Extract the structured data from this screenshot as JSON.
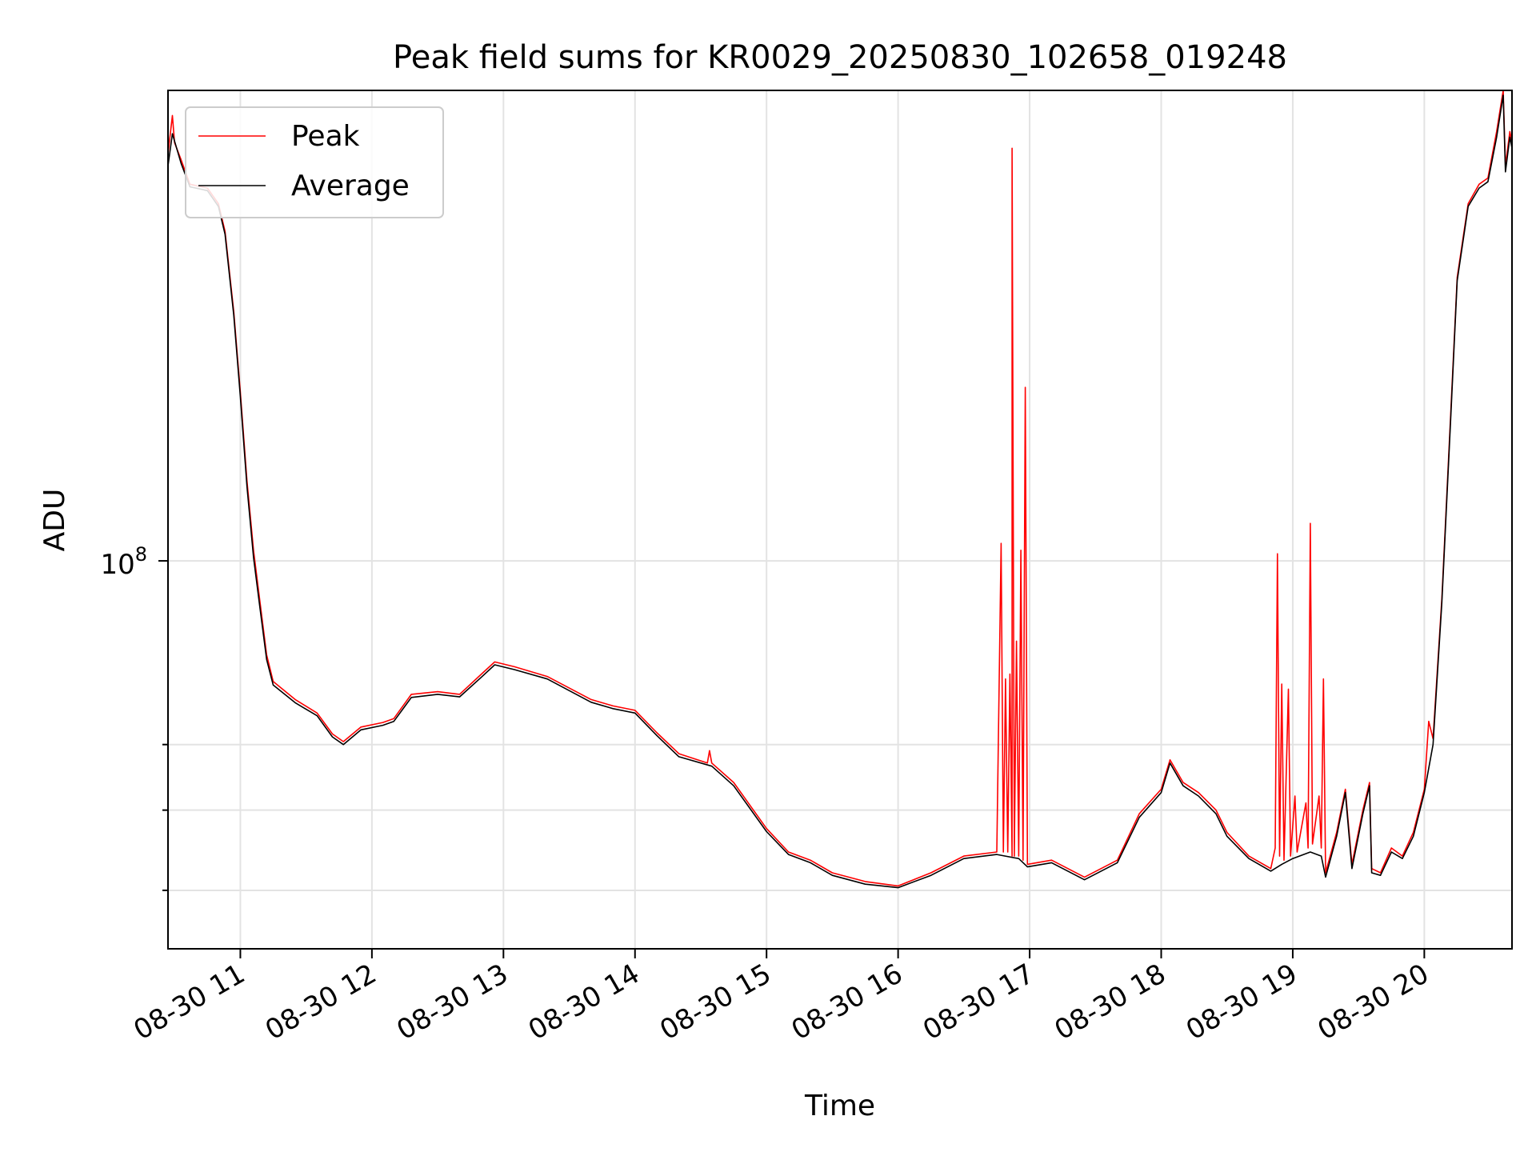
{
  "chart_data": {
    "type": "line",
    "title": "Peak field sums for KR0029_20250830_102658_019248",
    "xlabel": "Time",
    "ylabel": "ADU",
    "y_scale": "log",
    "grid": true,
    "legend_position": "upper-left",
    "x_range": [
      "2025-08-30T10:27",
      "2025-08-30T20:40"
    ],
    "ylim": [
      34000000,
      370000000
    ],
    "x_ticks": [
      "08-30 11",
      "08-30 12",
      "08-30 13",
      "08-30 14",
      "08-30 15",
      "08-30 16",
      "08-30 17",
      "08-30 18",
      "08-30 19",
      "08-30 20"
    ],
    "y_ticks": [
      {
        "value": 100000000,
        "label_base": "10",
        "label_exp": "8"
      },
      {
        "value": 40000000,
        "label_base": "",
        "label_exp": ""
      },
      {
        "value": 50000000,
        "label_base": "",
        "label_exp": ""
      },
      {
        "value": 60000000,
        "label_base": "",
        "label_exp": ""
      }
    ],
    "series": [
      {
        "name": "Peak",
        "color": "#ff0000",
        "points": [
          [
            "2025-08-30T10:27",
            310000000
          ],
          [
            "2025-08-30T10:29",
            345000000
          ],
          [
            "2025-08-30T10:30",
            320000000
          ],
          [
            "2025-08-30T10:33",
            305000000
          ],
          [
            "2025-08-30T10:37",
            285000000
          ],
          [
            "2025-08-30T10:45",
            282000000
          ],
          [
            "2025-08-30T10:50",
            270000000
          ],
          [
            "2025-08-30T10:53",
            250000000
          ],
          [
            "2025-08-30T10:57",
            200000000
          ],
          [
            "2025-08-30T11:00",
            160000000
          ],
          [
            "2025-08-30T11:03",
            125000000
          ],
          [
            "2025-08-30T11:06",
            103000000
          ],
          [
            "2025-08-30T11:09",
            89000000
          ],
          [
            "2025-08-30T11:12",
            77000000
          ],
          [
            "2025-08-30T11:15",
            71500000
          ],
          [
            "2025-08-30T11:25",
            68000000
          ],
          [
            "2025-08-30T11:35",
            65500000
          ],
          [
            "2025-08-30T11:42",
            61800000
          ],
          [
            "2025-08-30T11:47",
            60500000
          ],
          [
            "2025-08-30T11:55",
            63000000
          ],
          [
            "2025-08-30T12:05",
            63800000
          ],
          [
            "2025-08-30T12:10",
            64500000
          ],
          [
            "2025-08-30T12:18",
            69000000
          ],
          [
            "2025-08-30T12:30",
            69500000
          ],
          [
            "2025-08-30T12:40",
            69000000
          ],
          [
            "2025-08-30T12:50",
            73000000
          ],
          [
            "2025-08-30T12:56",
            75500000
          ],
          [
            "2025-08-30T13:05",
            74500000
          ],
          [
            "2025-08-30T13:20",
            72500000
          ],
          [
            "2025-08-30T13:40",
            68000000
          ],
          [
            "2025-08-30T13:50",
            66800000
          ],
          [
            "2025-08-30T14:00",
            66000000
          ],
          [
            "2025-08-30T14:10",
            62000000
          ],
          [
            "2025-08-30T14:20",
            58500000
          ],
          [
            "2025-08-30T14:33",
            57000000
          ],
          [
            "2025-08-30T14:34",
            59000000
          ],
          [
            "2025-08-30T14:35",
            57000000
          ],
          [
            "2025-08-30T14:45",
            54000000
          ],
          [
            "2025-08-30T15:00",
            47500000
          ],
          [
            "2025-08-30T15:10",
            44500000
          ],
          [
            "2025-08-30T15:20",
            43500000
          ],
          [
            "2025-08-30T15:30",
            42000000
          ],
          [
            "2025-08-30T15:45",
            41000000
          ],
          [
            "2025-08-30T16:00",
            40500000
          ],
          [
            "2025-08-30T16:15",
            42000000
          ],
          [
            "2025-08-30T16:30",
            44000000
          ],
          [
            "2025-08-30T16:45",
            44500000
          ],
          [
            "2025-08-30T16:47",
            105000000
          ],
          [
            "2025-08-30T16:48",
            44500000
          ],
          [
            "2025-08-30T16:49",
            72000000
          ],
          [
            "2025-08-30T16:50",
            44500000
          ],
          [
            "2025-08-30T16:51",
            73000000
          ],
          [
            "2025-08-30T16:52",
            44000000
          ],
          [
            "2025-08-30T16:52",
            315000000
          ],
          [
            "2025-08-30T16:53",
            44000000
          ],
          [
            "2025-08-30T16:54",
            80000000
          ],
          [
            "2025-08-30T16:55",
            44000000
          ],
          [
            "2025-08-30T16:56",
            103000000
          ],
          [
            "2025-08-30T16:57",
            43500000
          ],
          [
            "2025-08-30T16:58",
            162000000
          ],
          [
            "2025-08-30T16:59",
            43000000
          ],
          [
            "2025-08-30T17:10",
            43500000
          ],
          [
            "2025-08-30T17:25",
            41500000
          ],
          [
            "2025-08-30T17:40",
            43500000
          ],
          [
            "2025-08-30T17:50",
            49500000
          ],
          [
            "2025-08-30T18:00",
            53000000
          ],
          [
            "2025-08-30T18:04",
            57500000
          ],
          [
            "2025-08-30T18:10",
            54000000
          ],
          [
            "2025-08-30T18:17",
            52500000
          ],
          [
            "2025-08-30T18:25",
            50000000
          ],
          [
            "2025-08-30T18:30",
            47000000
          ],
          [
            "2025-08-30T18:40",
            44000000
          ],
          [
            "2025-08-30T18:50",
            42500000
          ],
          [
            "2025-08-30T18:52",
            45000000
          ],
          [
            "2025-08-30T18:53",
            102000000
          ],
          [
            "2025-08-30T18:54",
            44000000
          ],
          [
            "2025-08-30T18:55",
            71000000
          ],
          [
            "2025-08-30T18:56",
            43500000
          ],
          [
            "2025-08-30T18:58",
            70000000
          ],
          [
            "2025-08-30T18:59",
            44000000
          ],
          [
            "2025-08-30T19:01",
            52000000
          ],
          [
            "2025-08-30T19:02",
            44500000
          ],
          [
            "2025-08-30T19:06",
            51000000
          ],
          [
            "2025-08-30T19:07",
            45000000
          ],
          [
            "2025-08-30T19:08",
            111000000
          ],
          [
            "2025-08-30T19:09",
            45500000
          ],
          [
            "2025-08-30T19:12",
            52000000
          ],
          [
            "2025-08-30T19:13",
            45000000
          ],
          [
            "2025-08-30T19:14",
            72000000
          ],
          [
            "2025-08-30T19:15",
            42000000
          ],
          [
            "2025-08-30T19:20",
            47000000
          ],
          [
            "2025-08-30T19:24",
            53000000
          ],
          [
            "2025-08-30T19:27",
            43000000
          ],
          [
            "2025-08-30T19:32",
            50000000
          ],
          [
            "2025-08-30T19:35",
            54000000
          ],
          [
            "2025-08-30T19:36",
            42500000
          ],
          [
            "2025-08-30T19:40",
            42000000
          ],
          [
            "2025-08-30T19:45",
            45000000
          ],
          [
            "2025-08-30T19:50",
            44000000
          ],
          [
            "2025-08-30T19:55",
            47000000
          ],
          [
            "2025-08-30T20:00",
            53000000
          ],
          [
            "2025-08-30T20:02",
            64000000
          ],
          [
            "2025-08-30T20:04",
            61000000
          ],
          [
            "2025-08-30T20:08",
            90000000
          ],
          [
            "2025-08-30T20:12",
            150000000
          ],
          [
            "2025-08-30T20:15",
            220000000
          ],
          [
            "2025-08-30T20:20",
            270000000
          ],
          [
            "2025-08-30T20:25",
            285000000
          ],
          [
            "2025-08-30T20:29",
            290000000
          ],
          [
            "2025-08-30T20:33",
            330000000
          ],
          [
            "2025-08-30T20:36",
            370000000
          ],
          [
            "2025-08-30T20:37",
            300000000
          ],
          [
            "2025-08-30T20:39",
            330000000
          ],
          [
            "2025-08-30T20:40",
            320000000
          ]
        ]
      },
      {
        "name": "Average",
        "color": "#000000",
        "points": [
          [
            "2025-08-30T10:27",
            300000000
          ],
          [
            "2025-08-30T10:29",
            328000000
          ],
          [
            "2025-08-30T10:33",
            302000000
          ],
          [
            "2025-08-30T10:37",
            283000000
          ],
          [
            "2025-08-30T10:45",
            280000000
          ],
          [
            "2025-08-30T10:50",
            268000000
          ],
          [
            "2025-08-30T10:53",
            248000000
          ],
          [
            "2025-08-30T10:57",
            198000000
          ],
          [
            "2025-08-30T11:00",
            158000000
          ],
          [
            "2025-08-30T11:03",
            123000000
          ],
          [
            "2025-08-30T11:06",
            101000000
          ],
          [
            "2025-08-30T11:09",
            87500000
          ],
          [
            "2025-08-30T11:12",
            76000000
          ],
          [
            "2025-08-30T11:15",
            70800000
          ],
          [
            "2025-08-30T11:25",
            67400000
          ],
          [
            "2025-08-30T11:35",
            65000000
          ],
          [
            "2025-08-30T11:42",
            61300000
          ],
          [
            "2025-08-30T11:47",
            60000000
          ],
          [
            "2025-08-30T11:55",
            62500000
          ],
          [
            "2025-08-30T12:05",
            63300000
          ],
          [
            "2025-08-30T12:10",
            64000000
          ],
          [
            "2025-08-30T12:18",
            68400000
          ],
          [
            "2025-08-30T12:30",
            69000000
          ],
          [
            "2025-08-30T12:40",
            68500000
          ],
          [
            "2025-08-30T12:50",
            72400000
          ],
          [
            "2025-08-30T12:56",
            74900000
          ],
          [
            "2025-08-30T13:05",
            73900000
          ],
          [
            "2025-08-30T13:20",
            72000000
          ],
          [
            "2025-08-30T13:40",
            67500000
          ],
          [
            "2025-08-30T13:50",
            66300000
          ],
          [
            "2025-08-30T14:00",
            65500000
          ],
          [
            "2025-08-30T14:10",
            61500000
          ],
          [
            "2025-08-30T14:20",
            58000000
          ],
          [
            "2025-08-30T14:35",
            56500000
          ],
          [
            "2025-08-30T14:45",
            53500000
          ],
          [
            "2025-08-30T15:00",
            47100000
          ],
          [
            "2025-08-30T15:10",
            44200000
          ],
          [
            "2025-08-30T15:20",
            43200000
          ],
          [
            "2025-08-30T15:30",
            41700000
          ],
          [
            "2025-08-30T15:45",
            40700000
          ],
          [
            "2025-08-30T16:00",
            40300000
          ],
          [
            "2025-08-30T16:15",
            41700000
          ],
          [
            "2025-08-30T16:30",
            43700000
          ],
          [
            "2025-08-30T16:45",
            44200000
          ],
          [
            "2025-08-30T16:55",
            43700000
          ],
          [
            "2025-08-30T16:59",
            42700000
          ],
          [
            "2025-08-30T17:10",
            43200000
          ],
          [
            "2025-08-30T17:25",
            41200000
          ],
          [
            "2025-08-30T17:40",
            43200000
          ],
          [
            "2025-08-30T17:50",
            49000000
          ],
          [
            "2025-08-30T18:00",
            52500000
          ],
          [
            "2025-08-30T18:04",
            57000000
          ],
          [
            "2025-08-30T18:10",
            53500000
          ],
          [
            "2025-08-30T18:17",
            52000000
          ],
          [
            "2025-08-30T18:25",
            49500000
          ],
          [
            "2025-08-30T18:30",
            46500000
          ],
          [
            "2025-08-30T18:40",
            43700000
          ],
          [
            "2025-08-30T18:50",
            42200000
          ],
          [
            "2025-08-30T18:55",
            43000000
          ],
          [
            "2025-08-30T19:00",
            43700000
          ],
          [
            "2025-08-30T19:08",
            44500000
          ],
          [
            "2025-08-30T19:13",
            44000000
          ],
          [
            "2025-08-30T19:15",
            41500000
          ],
          [
            "2025-08-30T19:20",
            46500000
          ],
          [
            "2025-08-30T19:24",
            52500000
          ],
          [
            "2025-08-30T19:27",
            42500000
          ],
          [
            "2025-08-30T19:32",
            49500000
          ],
          [
            "2025-08-30T19:35",
            53500000
          ],
          [
            "2025-08-30T19:36",
            42000000
          ],
          [
            "2025-08-30T19:40",
            41700000
          ],
          [
            "2025-08-30T19:45",
            44500000
          ],
          [
            "2025-08-30T19:50",
            43700000
          ],
          [
            "2025-08-30T19:55",
            46500000
          ],
          [
            "2025-08-30T20:00",
            52500000
          ],
          [
            "2025-08-30T20:04",
            60000000
          ],
          [
            "2025-08-30T20:08",
            89000000
          ],
          [
            "2025-08-30T20:12",
            148000000
          ],
          [
            "2025-08-30T20:15",
            218000000
          ],
          [
            "2025-08-30T20:20",
            268000000
          ],
          [
            "2025-08-30T20:25",
            282000000
          ],
          [
            "2025-08-30T20:29",
            287000000
          ],
          [
            "2025-08-30T20:33",
            325000000
          ],
          [
            "2025-08-30T20:36",
            365000000
          ],
          [
            "2025-08-30T20:37",
            295000000
          ],
          [
            "2025-08-30T20:39",
            325000000
          ],
          [
            "2025-08-30T20:40",
            315000000
          ]
        ]
      }
    ]
  }
}
